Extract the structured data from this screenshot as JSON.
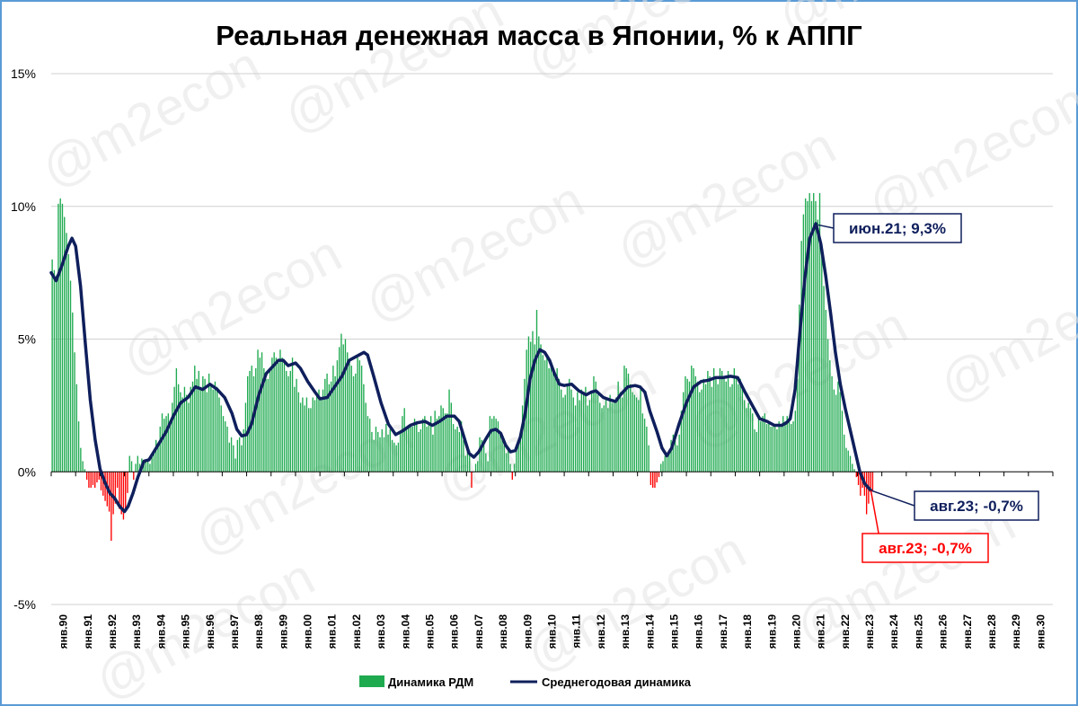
{
  "chart_data": {
    "type": "bar",
    "title": "Реальная денежная масса в Японии, % к АППГ",
    "xlabel": "",
    "ylabel": "",
    "ylim": [
      -5,
      15
    ],
    "y_ticks": [
      15,
      10,
      5,
      0,
      -5
    ],
    "y_tick_labels": [
      "15%",
      "10%",
      "5%",
      "0%",
      "-5%"
    ],
    "x_tick_labels": [
      "янв.90",
      "янв.91",
      "янв.92",
      "янв.93",
      "янв.94",
      "янв.95",
      "янв.96",
      "янв.97",
      "янв.98",
      "янв.99",
      "янв.00",
      "янв.01",
      "янв.02",
      "янв.03",
      "янв.04",
      "янв.05",
      "янв.06",
      "янв.07",
      "янв.08",
      "янв.09",
      "янв.10",
      "янв.11",
      "янв.12",
      "янв.13",
      "янв.14",
      "янв.15",
      "янв.16",
      "янв.17",
      "янв.18",
      "янв.19",
      "янв.20",
      "янв.21",
      "янв.22",
      "янв.23",
      "янв.24",
      "янв.25",
      "янв.26",
      "янв.27",
      "янв.28",
      "янв.29",
      "янв.30"
    ],
    "grid": true,
    "legend_position": "bottom",
    "series": [
      {
        "name": "Динамика РДМ",
        "chart_type": "bar",
        "color_positive": "#1faa50",
        "color_negative": "#ff0000",
        "monthly_values_by_year": [
          [
            8.0,
            7.6,
            7.4,
            10.1,
            10.3,
            10.1,
            9.6,
            9.0,
            8.2,
            7.2,
            6.0,
            4.5
          ],
          [
            3.3,
            1.9,
            0.9,
            0.4,
            0.1,
            -0.3,
            -0.6,
            -0.6,
            -0.5,
            -0.6,
            -0.4,
            -0.3
          ],
          [
            -0.7,
            -0.9,
            -1.1,
            -1.3,
            -1.5,
            -2.6,
            -1.6,
            -1.2,
            -0.6,
            -1.4,
            -1.6,
            -1.8
          ],
          [
            -1.4,
            -0.8,
            0.6,
            0.4,
            -0.3,
            0.3,
            0.6,
            0.3,
            0.5,
            0.3,
            0.4,
            0.5
          ],
          [
            0.3,
            0.7,
            0.7,
            1.2,
            1.0,
            1.7,
            2.2,
            2.0,
            2.1,
            2.2,
            1.9,
            2.6
          ],
          [
            3.2,
            3.9,
            3.3,
            3.0,
            2.8,
            3.2,
            2.9,
            2.6,
            3.2,
            3.4,
            4.0,
            3.5
          ],
          [
            3.8,
            3.2,
            3.6,
            3.5,
            3.0,
            3.7,
            3.3,
            3.1,
            3.4,
            3.2,
            2.8,
            2.5
          ],
          [
            2.1,
            1.9,
            1.7,
            1.1,
            1.3,
            1.0,
            0.5,
            1.2,
            1.3,
            1.0,
            1.6,
            2.6
          ],
          [
            3.6,
            3.8,
            4.0,
            3.6,
            3.9,
            4.6,
            4.3,
            4.5,
            3.9,
            3.5,
            3.5,
            3.8
          ],
          [
            4.3,
            4.5,
            4.3,
            4.1,
            4.6,
            4.3,
            4.1,
            3.8,
            3.6,
            3.8,
            4.3,
            3.2
          ],
          [
            3.5,
            3.0,
            2.6,
            2.8,
            2.5,
            2.8,
            2.4,
            2.4,
            2.8,
            2.7,
            3.0,
            3.1
          ],
          [
            2.8,
            3.1,
            3.5,
            3.7,
            3.3,
            3.4,
            4.0,
            3.6,
            4.2,
            4.7,
            5.2,
            4.8
          ],
          [
            5.0,
            4.5,
            4.2,
            4.0,
            3.6,
            3.7,
            4.3,
            4.2,
            4.0,
            3.3,
            2.6,
            2.1
          ],
          [
            2.0,
            1.5,
            1.2,
            1.7,
            1.5,
            1.3,
            1.6,
            1.3,
            1.8,
            1.4,
            1.6,
            1.2
          ],
          [
            1.1,
            1.0,
            1.1,
            1.5,
            2.1,
            2.4,
            1.6,
            1.7,
            1.8,
            1.7,
            2.0,
            1.9
          ],
          [
            1.5,
            1.6,
            2.0,
            2.1,
            1.7,
            1.8,
            2.1,
            1.4,
            2.3,
            2.0,
            2.1,
            2.5
          ],
          [
            2.4,
            2.2,
            2.2,
            3.1,
            2.6,
            1.8,
            1.6,
            1.7,
            1.5,
            1.9,
            1.2,
            0.6
          ],
          [
            0.9,
            0.8,
            -0.6,
            0.0,
            0.3,
            0.4,
            1.3,
            1.2,
            1.2,
            0.7,
            0.4,
            2.1
          ],
          [
            2.0,
            2.1,
            2.0,
            1.9,
            1.5,
            1.4,
            1.0,
            0.7,
            0.9,
            0.3,
            -0.3,
            0.3
          ],
          [
            0.9,
            1.1,
            1.5,
            2.5,
            3.5,
            4.6,
            5.1,
            4.9,
            5.3,
            4.8,
            6.1,
            5.1
          ],
          [
            4.8,
            4.4,
            4.2,
            4.3,
            3.9,
            4.1,
            3.9,
            3.6,
            3.9,
            3.5,
            3.1,
            2.8
          ],
          [
            2.9,
            3.3,
            3.5,
            3.1,
            2.8,
            2.5,
            3.0,
            2.7,
            3.1,
            2.9,
            3.2,
            2.5
          ],
          [
            2.7,
            3.0,
            3.6,
            3.4,
            2.9,
            2.6,
            2.4,
            2.5,
            2.8,
            2.4,
            2.9,
            2.6
          ],
          [
            2.7,
            2.8,
            3.4,
            3.0,
            2.8,
            4.0,
            3.9,
            3.7,
            3.3,
            3.0,
            2.9,
            2.8
          ],
          [
            2.7,
            3.1,
            2.2,
            2.0,
            1.7,
            1.0,
            -0.5,
            -0.6,
            -0.6,
            -0.4,
            -0.2,
            0.3
          ],
          [
            0.4,
            0.6,
            0.7,
            0.8,
            1.2,
            1.4,
            1.2,
            1.0,
            1.4,
            2.3,
            3.0,
            3.6
          ],
          [
            3.5,
            3.4,
            4.0,
            3.9,
            3.6,
            3.4,
            3.0,
            3.1,
            3.5,
            3.3,
            3.8,
            3.6
          ],
          [
            3.2,
            3.9,
            3.6,
            3.3,
            3.9,
            3.8,
            3.5,
            3.4,
            3.8,
            3.2,
            3.3,
            3.9
          ],
          [
            3.6,
            3.3,
            3.5,
            3.3,
            2.7,
            2.4,
            2.6,
            2.4,
            2.2,
            1.6,
            1.5,
            2.0
          ],
          [
            1.9,
            2.1,
            2.2,
            1.8,
            1.9,
            1.7,
            1.7,
            1.8,
            1.6,
            1.9,
            1.7,
            2.1
          ],
          [
            1.9,
            2.1,
            1.9,
            1.8,
            1.9,
            2.3,
            3.5,
            6.3,
            8.7,
            9.7,
            10.3,
            10.2
          ],
          [
            10.5,
            10.2,
            10.5,
            10.2,
            9.5,
            10.5,
            8.6,
            7.0,
            6.1,
            5.0,
            4.2,
            3.6
          ],
          [
            3.1,
            2.9,
            3.4,
            3.0,
            2.3,
            1.4,
            0.9,
            0.8,
            0.6,
            0.3,
            0.1,
            -0.2
          ],
          [
            -0.5,
            -0.9,
            -0.6,
            -0.9,
            -1.6,
            -1.2,
            -0.6,
            -0.7
          ]
        ]
      },
      {
        "name": "Среднегодовая динамика",
        "chart_type": "line",
        "color": "#0f1f5c",
        "points": [
          [
            1990.0,
            7.5
          ],
          [
            1990.2,
            7.2
          ],
          [
            1990.45,
            7.8
          ],
          [
            1990.7,
            8.5
          ],
          [
            1990.85,
            8.8
          ],
          [
            1991.0,
            8.5
          ],
          [
            1991.2,
            7.0
          ],
          [
            1991.4,
            4.8
          ],
          [
            1991.6,
            2.7
          ],
          [
            1991.8,
            1.2
          ],
          [
            1992.0,
            0.1
          ],
          [
            1992.2,
            -0.4
          ],
          [
            1992.4,
            -0.8
          ],
          [
            1992.6,
            -1.0
          ],
          [
            1992.8,
            -1.3
          ],
          [
            1993.0,
            -1.5
          ],
          [
            1993.15,
            -1.3
          ],
          [
            1993.35,
            -0.8
          ],
          [
            1993.55,
            -0.2
          ],
          [
            1993.8,
            0.4
          ],
          [
            1994.0,
            0.45
          ],
          [
            1994.3,
            0.9
          ],
          [
            1994.7,
            1.5
          ],
          [
            1995.0,
            2.1
          ],
          [
            1995.3,
            2.6
          ],
          [
            1995.6,
            2.8
          ],
          [
            1995.9,
            3.2
          ],
          [
            1996.2,
            3.1
          ],
          [
            1996.5,
            3.3
          ],
          [
            1996.8,
            3.1
          ],
          [
            1997.1,
            2.8
          ],
          [
            1997.4,
            2.2
          ],
          [
            1997.6,
            1.6
          ],
          [
            1997.8,
            1.35
          ],
          [
            1998.0,
            1.4
          ],
          [
            1998.2,
            1.8
          ],
          [
            1998.5,
            2.9
          ],
          [
            1998.8,
            3.7
          ],
          [
            1999.1,
            4.0
          ],
          [
            1999.3,
            4.2
          ],
          [
            1999.5,
            4.2
          ],
          [
            1999.7,
            4.0
          ],
          [
            2000.0,
            4.1
          ],
          [
            2000.2,
            3.9
          ],
          [
            2000.5,
            3.4
          ],
          [
            2000.8,
            3.0
          ],
          [
            2001.0,
            2.75
          ],
          [
            2001.3,
            2.8
          ],
          [
            2001.6,
            3.2
          ],
          [
            2001.9,
            3.6
          ],
          [
            2002.2,
            4.2
          ],
          [
            2002.5,
            4.35
          ],
          [
            2002.8,
            4.5
          ],
          [
            2002.95,
            4.4
          ],
          [
            2003.2,
            3.6
          ],
          [
            2003.5,
            2.6
          ],
          [
            2003.8,
            1.8
          ],
          [
            2004.1,
            1.4
          ],
          [
            2004.4,
            1.55
          ],
          [
            2004.7,
            1.75
          ],
          [
            2005.0,
            1.85
          ],
          [
            2005.3,
            1.9
          ],
          [
            2005.6,
            1.75
          ],
          [
            2005.9,
            1.9
          ],
          [
            2006.2,
            2.1
          ],
          [
            2006.5,
            2.1
          ],
          [
            2006.7,
            1.9
          ],
          [
            2006.9,
            1.3
          ],
          [
            2007.1,
            0.7
          ],
          [
            2007.3,
            0.55
          ],
          [
            2007.5,
            0.75
          ],
          [
            2007.8,
            1.25
          ],
          [
            2008.0,
            1.55
          ],
          [
            2008.2,
            1.6
          ],
          [
            2008.4,
            1.45
          ],
          [
            2008.6,
            1.0
          ],
          [
            2008.8,
            0.75
          ],
          [
            2009.0,
            0.8
          ],
          [
            2009.2,
            1.3
          ],
          [
            2009.4,
            2.2
          ],
          [
            2009.6,
            3.5
          ],
          [
            2009.8,
            4.2
          ],
          [
            2010.0,
            4.6
          ],
          [
            2010.2,
            4.5
          ],
          [
            2010.4,
            4.2
          ],
          [
            2010.6,
            3.7
          ],
          [
            2010.8,
            3.3
          ],
          [
            2011.0,
            3.25
          ],
          [
            2011.3,
            3.3
          ],
          [
            2011.6,
            3.05
          ],
          [
            2011.9,
            2.9
          ],
          [
            2012.1,
            3.0
          ],
          [
            2012.3,
            3.05
          ],
          [
            2012.6,
            2.8
          ],
          [
            2012.9,
            2.7
          ],
          [
            2013.1,
            2.65
          ],
          [
            2013.3,
            2.9
          ],
          [
            2013.6,
            3.2
          ],
          [
            2013.9,
            3.25
          ],
          [
            2014.1,
            3.2
          ],
          [
            2014.3,
            3.0
          ],
          [
            2014.5,
            2.3
          ],
          [
            2014.8,
            1.5
          ],
          [
            2015.0,
            0.9
          ],
          [
            2015.2,
            0.6
          ],
          [
            2015.4,
            0.9
          ],
          [
            2015.7,
            1.8
          ],
          [
            2016.0,
            2.6
          ],
          [
            2016.3,
            3.2
          ],
          [
            2016.6,
            3.4
          ],
          [
            2016.9,
            3.45
          ],
          [
            2017.2,
            3.55
          ],
          [
            2017.5,
            3.55
          ],
          [
            2017.8,
            3.6
          ],
          [
            2018.1,
            3.55
          ],
          [
            2018.4,
            3.0
          ],
          [
            2018.7,
            2.5
          ],
          [
            2019.0,
            2.0
          ],
          [
            2019.3,
            1.9
          ],
          [
            2019.6,
            1.75
          ],
          [
            2019.9,
            1.75
          ],
          [
            2020.1,
            1.85
          ],
          [
            2020.25,
            2.0
          ],
          [
            2020.45,
            3.1
          ],
          [
            2020.65,
            5.3
          ],
          [
            2020.85,
            7.3
          ],
          [
            2021.05,
            8.8
          ],
          [
            2021.3,
            9.35
          ],
          [
            2021.5,
            8.6
          ],
          [
            2021.7,
            7.4
          ],
          [
            2021.9,
            6.0
          ],
          [
            2022.1,
            4.5
          ],
          [
            2022.3,
            3.3
          ],
          [
            2022.5,
            2.4
          ],
          [
            2022.7,
            1.6
          ],
          [
            2022.9,
            0.8
          ],
          [
            2023.1,
            0.0
          ],
          [
            2023.3,
            -0.45
          ],
          [
            2023.55,
            -0.7
          ]
        ]
      }
    ],
    "annotations": [
      {
        "label": "июн.21; 9,3%",
        "x": 2021.4,
        "y": 9.3,
        "color": "#0f1f5c"
      },
      {
        "label": "авг.23; -0,7%",
        "x": 2023.55,
        "y": -0.7,
        "color": "#0f1f5c"
      },
      {
        "label": "авг.23; -0,7%",
        "x": 2023.55,
        "y": -0.7,
        "color": "#ff0000"
      }
    ],
    "watermark": "@m2econ"
  }
}
